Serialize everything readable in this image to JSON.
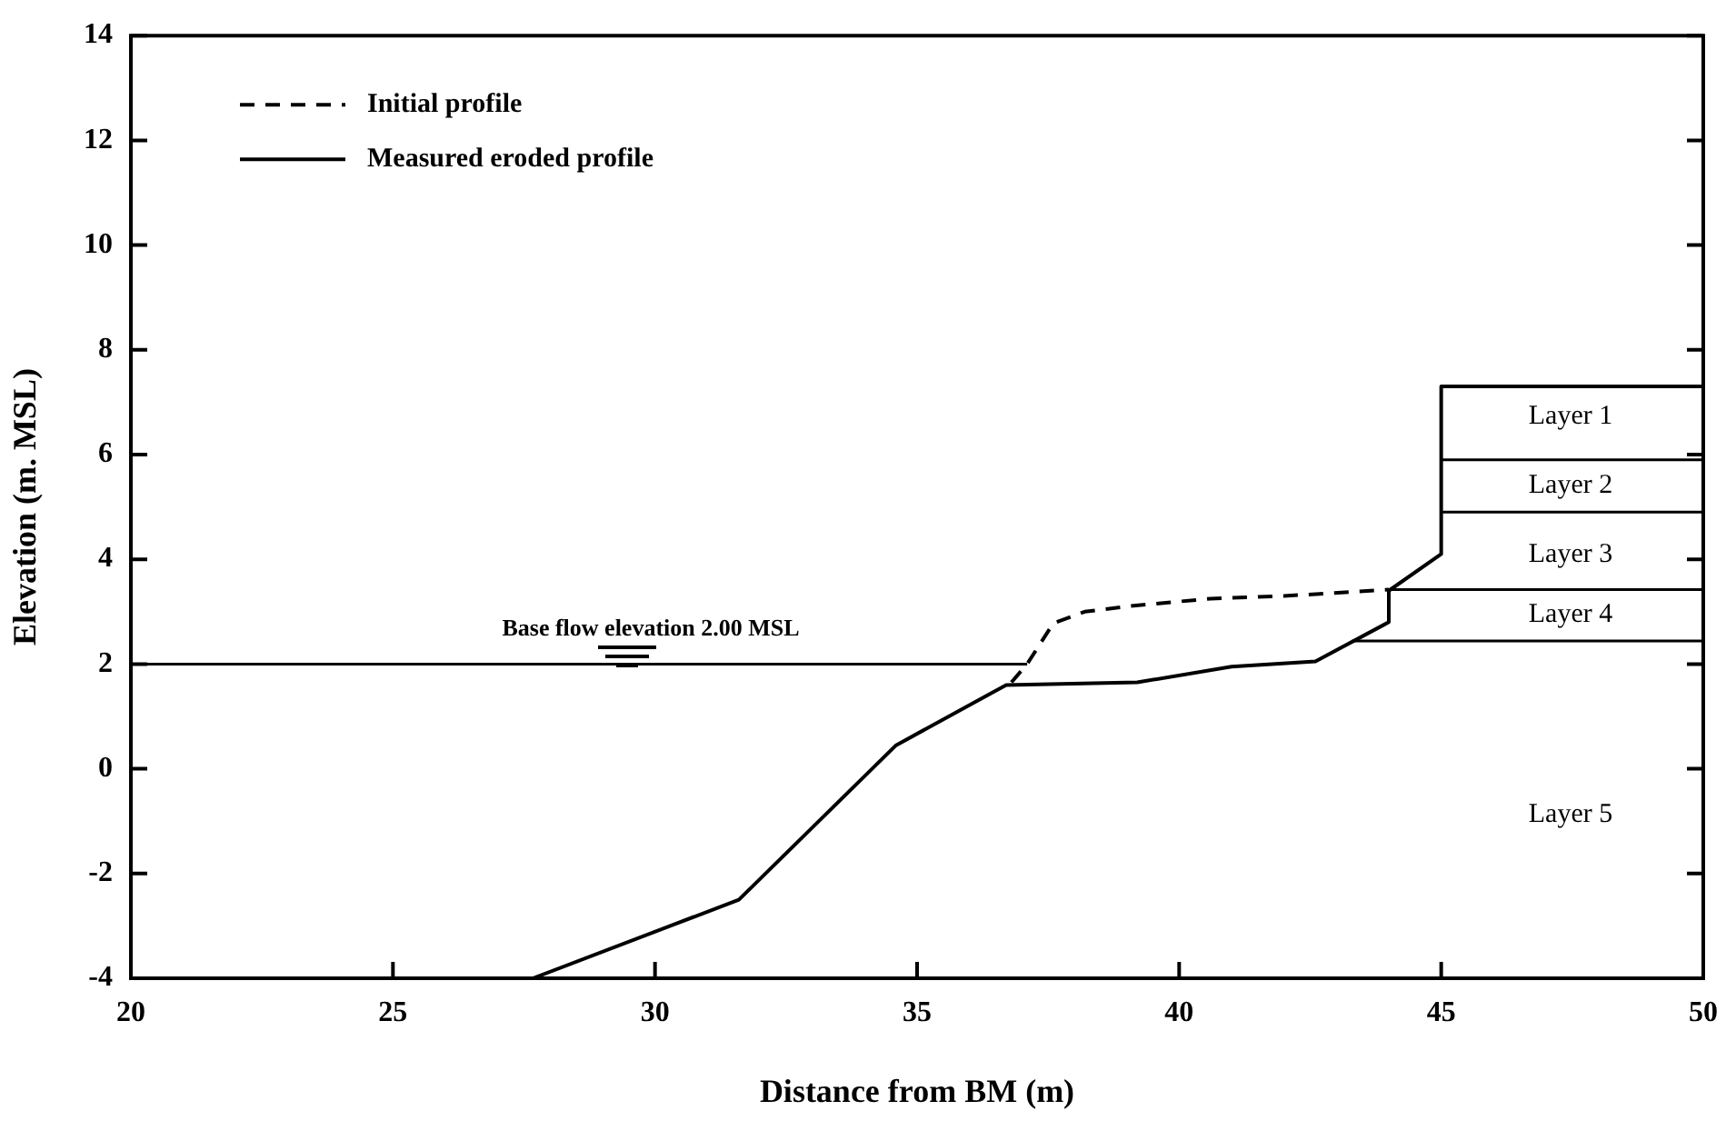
{
  "chart_data": {
    "type": "line",
    "xlabel": "Distance from BM (m)",
    "ylabel": "Elevation (m. MSL)",
    "xlim": [
      20,
      50
    ],
    "xticks": [
      20,
      25,
      30,
      35,
      40,
      45,
      50
    ],
    "ylim": [
      -4,
      14
    ],
    "yticks": [
      -4,
      -2,
      0,
      2,
      4,
      6,
      8,
      10,
      12,
      14
    ],
    "grid": false,
    "legend": "top left",
    "marker": "none",
    "series": [
      {
        "name": "Initial profile",
        "color": "#000000",
        "line_style": "dashed",
        "x": [
          36.8,
          37.1,
          37.6,
          38.2,
          39,
          40.6,
          42,
          44
        ],
        "values": [
          1.65,
          2.0,
          2.78,
          3.0,
          3.1,
          3.25,
          3.3,
          3.42
        ]
      },
      {
        "name": "Measured eroded profile",
        "color": "#000000",
        "line_style": "solid",
        "x": [
          27.67,
          31.6,
          34.6,
          36.7,
          39.2,
          41,
          42.6,
          44,
          44,
          45,
          45,
          50
        ],
        "values": [
          -4,
          -2.5,
          0.45,
          1.6,
          1.65,
          1.95,
          2.05,
          2.8,
          3.4,
          4.1,
          7.3,
          7.3
        ]
      },
      {
        "color": "#000000",
        "line_style": "solid",
        "x": [
          20,
          37.1
        ],
        "values": [
          2,
          2
        ]
      },
      {
        "color": "#000000",
        "line_style": "solid",
        "x": [
          45,
          50
        ],
        "values": [
          5.9,
          5.9
        ]
      },
      {
        "color": "#000000",
        "line_style": "solid",
        "x": [
          45,
          50
        ],
        "values": [
          4.9,
          4.9
        ]
      },
      {
        "color": "#000000",
        "line_style": "solid",
        "x": [
          44,
          50
        ],
        "values": [
          3.42,
          3.42
        ]
      },
      {
        "color": "#000000",
        "line_style": "solid",
        "x": [
          43.3,
          50
        ],
        "values": [
          2.44,
          2.44
        ]
      }
    ],
    "annotations": [
      "Base flow elevation 2.00 MSL",
      "Layer 1",
      "Layer 2",
      "Layer 3",
      "Layer 4",
      "Layer 5"
    ]
  }
}
